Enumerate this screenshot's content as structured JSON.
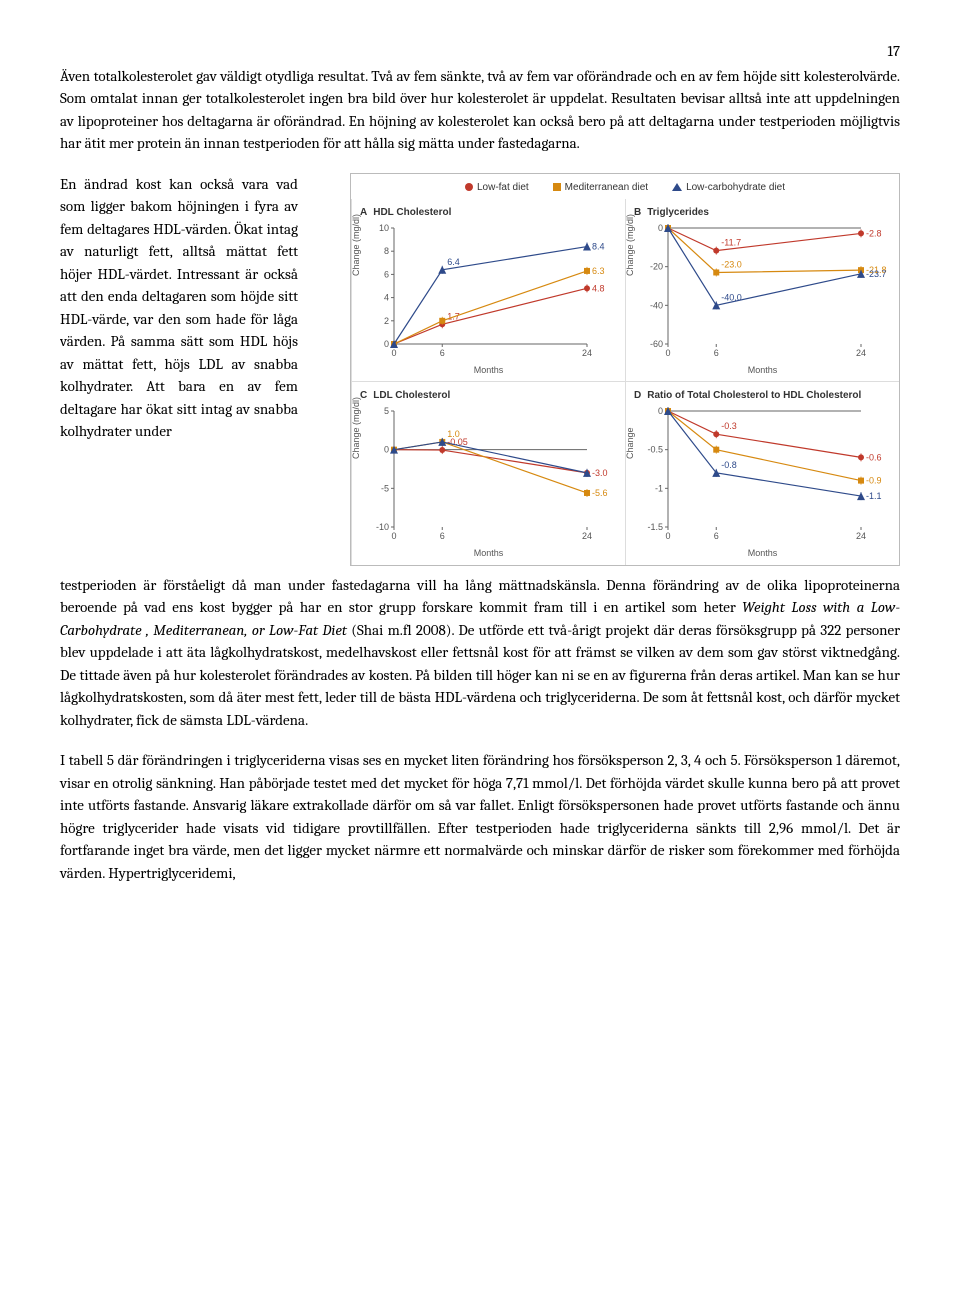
{
  "page_number": "17",
  "paragraphs": {
    "p1": "Även totalkolesterolet gav väldigt otydliga resultat. Två av fem sänkte, två av fem var oförändrade och en av fem höjde sitt kolesterolvärde. Som omtalat innan ger totalkolesterolet ingen bra bild över hur kolesterolet är uppdelat. Resultaten bevisar alltså inte att uppdelningen av lipoproteiner hos deltagarna är oförändrad. En höjning av kolesterolet kan också bero på att deltagarna under testperioden möjligtvis har ätit mer protein än innan testperioden för att hålla sig mätta under fastedagarna.",
    "p2_left": "En ändrad kost kan också vara vad som ligger bakom höjningen i fyra av fem deltagares HDL-värden. Ökat intag av naturligt fett, alltså mättat fett höjer HDL-värdet. Intressant är också att den enda deltagaren som höjde sitt HDL-värde, var den som hade för låga värden. På samma sätt som HDL höjs av mättat fett, höjs LDL av snabba kolhydrater. Att bara en av fem deltagare har ökat sitt intag av snabba kolhydrater under",
    "p2_cont": "testperioden är förståeligt då man under fastedagarna vill ha lång mättnadskänsla. Denna förändring av de olika lipoproteinerna beroende på vad ens kost bygger på har en stor grupp forskare kommit fram till i en artikel som heter ",
    "p2_italic": "Weight Loss with a Low-Carbohydrate , Mediterranean, or Low-Fat Diet",
    "p2_cont2": " (Shai m.fl 2008). De utförde ett två-årigt projekt där deras försöksgrupp på 322 personer blev uppdelade i att äta lågkolhydratskost, medelhavskost eller fettsnål kost för att främst se vilken av dem som gav störst viktnedgång. De tittade även på hur kolesterolet förändrades av kosten. På bilden till höger kan ni se en av figurerna från deras artikel. Man kan se hur lågkolhydratskosten, som då äter mest fett, leder till de bästa HDL-värdena och triglyceriderna. De som åt fettsnål kost, och därför mycket kolhydrater, fick de sämsta LDL-värdena.",
    "p3": "I tabell 5 där förändringen i triglyceriderna visas ses en mycket liten förändring hos försöksperson 2, 3, 4 och 5. Försöksperson 1 däremot, visar en otrolig sänkning. Han påbörjade testet med det mycket för höga 7,71 mmol/l. Det förhöjda värdet skulle kunna bero på att provet inte utförts fastande. Ansvarig läkare extrakollade därför om så var fallet. Enligt försökspersonen hade provet utförts fastande och ännu högre triglycerider hade visats vid tidigare provtillfällen. Efter testperioden hade triglyceriderna sänkts till 2,96 mmol/l. Det är fortfarande inget bra värde, men det ligger mycket närmre ett normalvärde och minskar därför de risker som förekommer med förhöjda värden. Hypertriglyceridemi,"
  },
  "figure": {
    "legend": [
      {
        "label": "Low-fat diet",
        "color": "#c0392b",
        "shape": "circle"
      },
      {
        "label": "Mediterranean diet",
        "color": "#d68910",
        "shape": "square"
      },
      {
        "label": "Low-carbohydrate diet",
        "color": "#2e4a8a",
        "shape": "triangle"
      }
    ],
    "x_ticks": [
      0,
      6,
      24
    ],
    "x_label": "Months",
    "y_label": "Change (mg/dl)",
    "y_label_ratio": "Change",
    "font_size_axis": 9,
    "font_size_value": 9,
    "axis_color": "#666666",
    "grid_color": "#e0e0e0",
    "background": "#ffffff",
    "line_width": 1.2,
    "marker_size": 3,
    "panels": {
      "A": {
        "letter": "A",
        "title": "HDL Cholesterol",
        "ylim": [
          0,
          10
        ],
        "yticks": [
          0,
          2,
          4,
          6,
          8,
          10
        ],
        "series": {
          "lowfat": {
            "x": [
              0,
              6,
              24
            ],
            "y": [
              0,
              1.7,
              4.8
            ],
            "labels": {
              "6": "1.7",
              "24": "4.8"
            }
          },
          "med": {
            "x": [
              0,
              6,
              24
            ],
            "y": [
              0,
              2.0,
              6.3
            ],
            "labels": {
              "24": "6.3"
            }
          },
          "lowcarb": {
            "x": [
              0,
              6,
              24
            ],
            "y": [
              0,
              6.4,
              8.4
            ],
            "labels": {
              "6": "6.4",
              "24": "8.4"
            }
          }
        }
      },
      "B": {
        "letter": "B",
        "title": "Triglycerides",
        "ylim": [
          -60,
          0
        ],
        "yticks": [
          -60,
          -40,
          -20,
          0
        ],
        "series": {
          "lowfat": {
            "x": [
              0,
              6,
              24
            ],
            "y": [
              0,
              -11.7,
              -2.8
            ],
            "labels": {
              "6": "-11.7",
              "24": "-2.8"
            }
          },
          "med": {
            "x": [
              0,
              6,
              24
            ],
            "y": [
              0,
              -23.0,
              -21.8
            ],
            "labels": {
              "6": "-23.0",
              "24": "-21.8"
            }
          },
          "lowcarb": {
            "x": [
              0,
              6,
              24
            ],
            "y": [
              0,
              -40.0,
              -23.7
            ],
            "labels": {
              "6": "-40.0",
              "24": "-23.7"
            }
          }
        }
      },
      "C": {
        "letter": "C",
        "title": "LDL Cholesterol",
        "ylim": [
          -10,
          5
        ],
        "yticks": [
          -10,
          -5,
          0,
          5
        ],
        "series": {
          "lowfat": {
            "x": [
              0,
              6,
              24
            ],
            "y": [
              0,
              -0.05,
              -3.0
            ],
            "labels": {
              "6": "-0.05",
              "24": "-3.0"
            }
          },
          "med": {
            "x": [
              0,
              6,
              24
            ],
            "y": [
              0,
              1.0,
              -5.6
            ],
            "labels": {
              "6": "1.0",
              "24": "-5.6"
            }
          },
          "lowcarb": {
            "x": [
              0,
              6,
              24
            ],
            "y": [
              0,
              1.0,
              -3.0
            ],
            "labels": {}
          }
        }
      },
      "D": {
        "letter": "D",
        "title": "Ratio of Total Cholesterol to HDL Cholesterol",
        "ylim": [
          -1.5,
          0
        ],
        "yticks": [
          -1.5,
          -1.0,
          -0.5,
          0
        ],
        "series": {
          "lowfat": {
            "x": [
              0,
              6,
              24
            ],
            "y": [
              0,
              -0.3,
              -0.6
            ],
            "labels": {
              "6": "-0.3",
              "24": "-0.6"
            }
          },
          "med": {
            "x": [
              0,
              6,
              24
            ],
            "y": [
              0,
              -0.5,
              -0.9
            ],
            "labels": {
              "24": "-0.9"
            }
          },
          "lowcarb": {
            "x": [
              0,
              6,
              24
            ],
            "y": [
              0,
              -0.8,
              -1.1
            ],
            "labels": {
              "6": "-0.8",
              "24": "-1.1"
            }
          }
        }
      }
    }
  }
}
